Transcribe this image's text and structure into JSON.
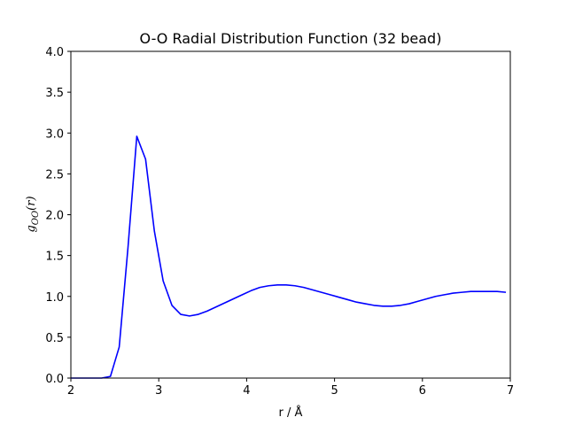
{
  "chart_data": {
    "type": "line",
    "title": "O-O Radial Distribution Function (32 bead)",
    "xlabel": "r / Å",
    "ylabel": "g_OO(r)",
    "ylabel_parts": {
      "main": "g",
      "sub": "OO",
      "rest": "(r)"
    },
    "xlim": [
      2,
      7
    ],
    "ylim": [
      0,
      4
    ],
    "xticks": [
      2,
      3,
      4,
      5,
      6,
      7
    ],
    "xtick_labels": [
      "2",
      "3",
      "4",
      "5",
      "6",
      "7"
    ],
    "yticks": [
      0,
      0.5,
      1,
      1.5,
      2,
      2.5,
      3,
      3.5,
      4
    ],
    "ytick_labels": [
      "0.0",
      "0.5",
      "1.0",
      "1.5",
      "2.0",
      "2.5",
      "3.0",
      "3.5",
      "4.0"
    ],
    "grid": false,
    "series": [
      {
        "color": "#0000ff",
        "x": [
          2.0,
          2.15,
          2.25,
          2.35,
          2.45,
          2.55,
          2.65,
          2.75,
          2.85,
          2.95,
          3.05,
          3.15,
          3.25,
          3.35,
          3.45,
          3.55,
          3.65,
          3.75,
          3.85,
          3.95,
          4.05,
          4.15,
          4.25,
          4.35,
          4.45,
          4.55,
          4.65,
          4.75,
          4.85,
          4.95,
          5.05,
          5.15,
          5.25,
          5.35,
          5.45,
          5.55,
          5.65,
          5.75,
          5.85,
          5.95,
          6.05,
          6.15,
          6.25,
          6.35,
          6.45,
          6.55,
          6.65,
          6.75,
          6.85,
          6.95
        ],
        "y": [
          0.0,
          0.0,
          0.0,
          0.0,
          0.02,
          0.38,
          1.6,
          2.96,
          2.68,
          1.8,
          1.19,
          0.89,
          0.78,
          0.76,
          0.78,
          0.82,
          0.87,
          0.92,
          0.97,
          1.02,
          1.07,
          1.11,
          1.13,
          1.14,
          1.14,
          1.13,
          1.11,
          1.08,
          1.05,
          1.02,
          0.99,
          0.96,
          0.93,
          0.91,
          0.89,
          0.88,
          0.88,
          0.89,
          0.91,
          0.94,
          0.97,
          1.0,
          1.02,
          1.04,
          1.05,
          1.06,
          1.06,
          1.06,
          1.06,
          1.05
        ]
      }
    ]
  }
}
